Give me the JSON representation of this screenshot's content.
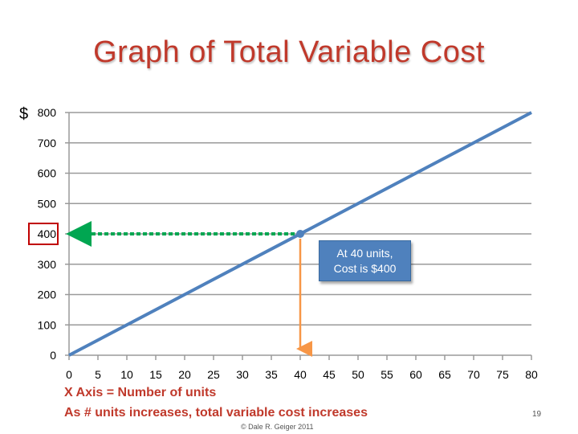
{
  "slide": {
    "title": "Graph of Total Variable Cost",
    "y_unit": "$",
    "callout_line1": "At 40 units,",
    "callout_line2": "Cost is $400",
    "caption_line1": "X Axis = Number of units",
    "caption_line2": "As # units increases, total variable cost increases",
    "copyright": "© Dale R. Geiger 2011",
    "page_number": "19"
  },
  "chart_data": {
    "type": "line",
    "x_ticks": [
      0,
      5,
      10,
      15,
      20,
      25,
      30,
      35,
      40,
      45,
      50,
      55,
      60,
      65,
      70,
      75,
      80
    ],
    "y_ticks": [
      0,
      100,
      200,
      300,
      400,
      500,
      600,
      700,
      800
    ],
    "xlim": [
      0,
      80
    ],
    "ylim": [
      0,
      800
    ],
    "grid": "horizontal",
    "series": [
      {
        "x": [
          0,
          80
        ],
        "y": [
          0,
          800
        ],
        "color": "#4f81bd"
      }
    ],
    "highlight_point": {
      "x": 40,
      "y": 400
    },
    "highlighted_y_tick": 400,
    "colors": {
      "line": "#4f81bd",
      "horizontal_arrow": "#00a651",
      "vertical_arrow": "#f79646",
      "box": "#c00000"
    }
  }
}
